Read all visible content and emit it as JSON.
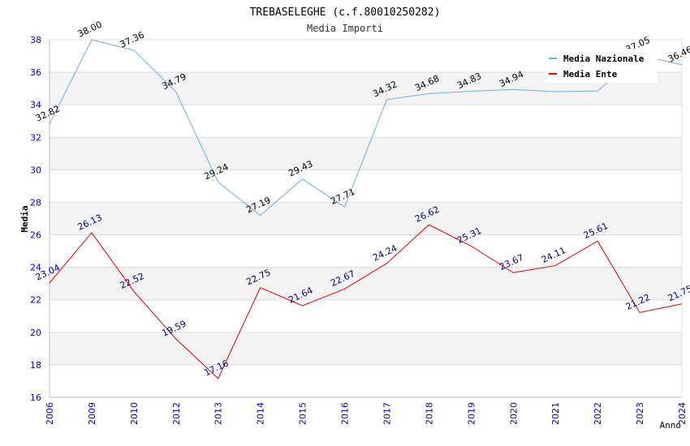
{
  "chart_data": {
    "type": "line",
    "title": "TREBASELEGHE (c.f.80010250282)",
    "subtitle": "Media Importi",
    "xlabel": "Anno",
    "ylabel": "Media",
    "ylim": [
      16,
      38
    ],
    "yticks": [
      "16",
      "18",
      "20",
      "22",
      "24",
      "26",
      "28",
      "30",
      "32",
      "34",
      "36",
      "38"
    ],
    "categories": [
      "2006",
      "2009",
      "2010",
      "2012",
      "2013",
      "2014",
      "2015",
      "2016",
      "2017",
      "2018",
      "2019",
      "2020",
      "2021",
      "2022",
      "2023",
      "2024"
    ],
    "legend_position": "top-right",
    "series": [
      {
        "name": "Media Nazionale",
        "color": "#6aaee8",
        "label_color": "#000000",
        "values": [
          32.82,
          38.0,
          37.36,
          34.79,
          29.24,
          27.19,
          29.43,
          27.71,
          34.32,
          34.68,
          34.83,
          34.94,
          34.81,
          34.85,
          37.05,
          36.46
        ],
        "labels": [
          "32.82",
          "38.00",
          "37.36",
          "34.79",
          "29.24",
          "27.19",
          "29.43",
          "27.71",
          "34.32",
          "34.68",
          "34.83",
          "34.94",
          "",
          "",
          "37.05",
          "36.46"
        ]
      },
      {
        "name": "Media Ente",
        "color": "#e00000",
        "label_color": "#000080",
        "values": [
          23.04,
          26.13,
          22.52,
          19.59,
          17.16,
          22.75,
          21.64,
          22.67,
          24.24,
          26.62,
          25.31,
          23.67,
          24.11,
          25.61,
          21.22,
          21.75
        ],
        "labels": [
          "23.04",
          "26.13",
          "22.52",
          "19.59",
          "17.16",
          "22.75",
          "21.64",
          "22.67",
          "24.24",
          "26.62",
          "25.31",
          "23.67",
          "24.11",
          "25.61",
          "21.22",
          "21.75"
        ]
      }
    ]
  }
}
